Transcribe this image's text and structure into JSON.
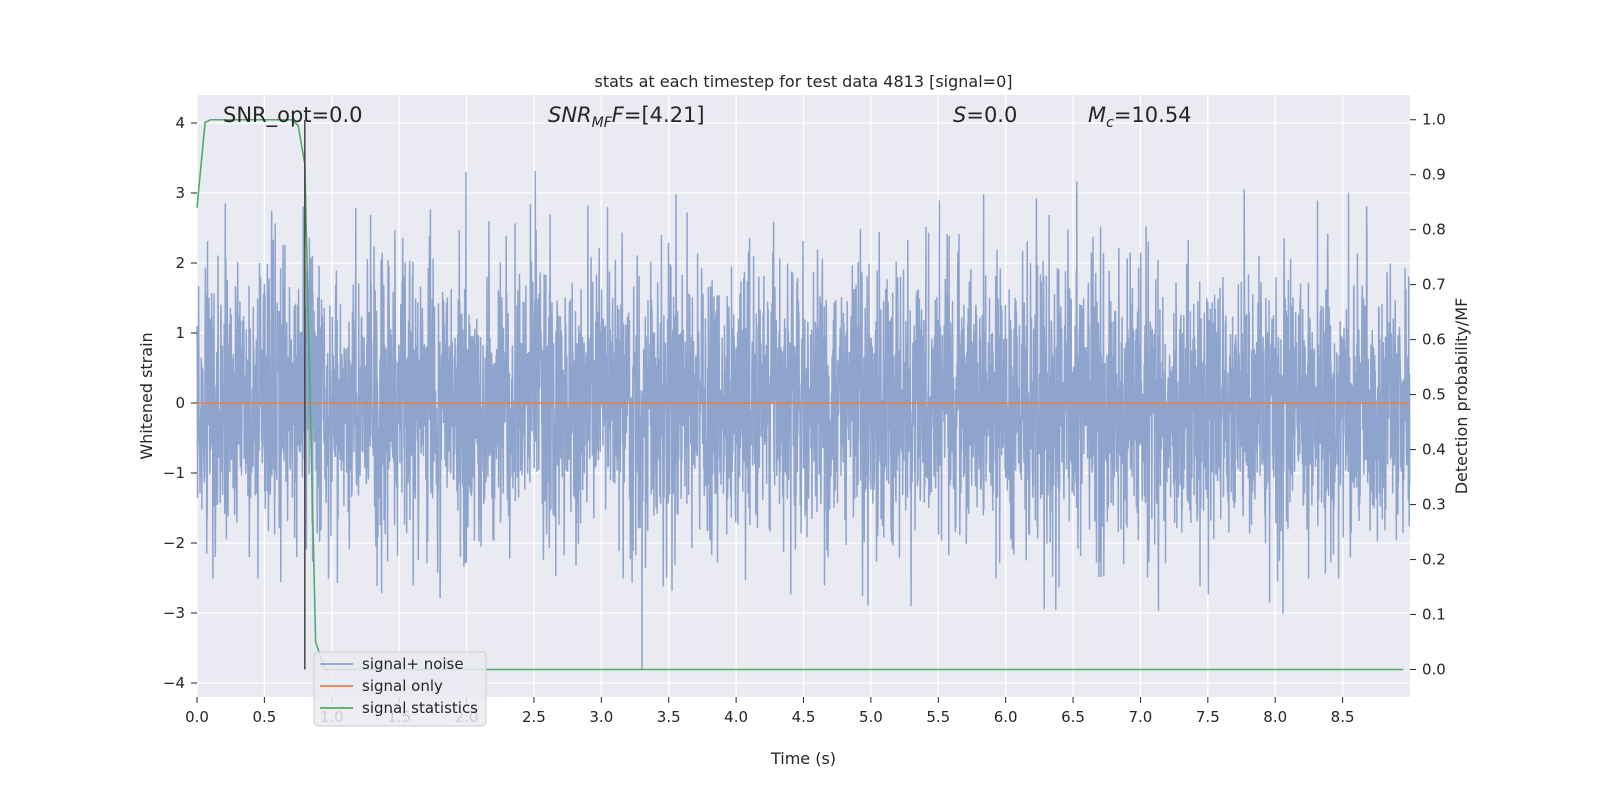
{
  "chart_data": {
    "type": "line",
    "title": "stats at each timestep for test data 4813 [signal=0]",
    "xlabel": "Time (s)",
    "ylabel_left": "Whitened strain",
    "ylabel_right": "Detection probability/MF",
    "xlim": [
      0.0,
      9.0
    ],
    "ylim_left": [
      -4.2,
      4.4
    ],
    "ylim_right": [
      -0.05,
      1.045
    ],
    "xticks": [
      "0.0",
      "0.5",
      "1.0",
      "1.5",
      "2.0",
      "2.5",
      "3.0",
      "3.5",
      "4.0",
      "4.5",
      "5.0",
      "5.5",
      "6.0",
      "6.5",
      "7.0",
      "7.5",
      "8.0",
      "8.5"
    ],
    "yticks_left": [
      "−4",
      "−3",
      "−2",
      "−1",
      "0",
      "1",
      "2",
      "3",
      "4"
    ],
    "yticks_right": [
      "0.0",
      "0.1",
      "0.2",
      "0.3",
      "0.4",
      "0.5",
      "0.6",
      "0.7",
      "0.8",
      "0.9",
      "1.0"
    ],
    "grid": true,
    "legend_position": "lower-left",
    "annotations": {
      "snr_opt": "SNR_opt=0.0",
      "snr_mf_prefix": "SNR",
      "snr_mf_sub": "MF",
      "snr_mf_suffix": "=[4.21]",
      "s_label": "S",
      "s_value": "=0.0",
      "mc_label": "M",
      "mc_sub": "c",
      "mc_value": "=10.54"
    },
    "vertical_marker_x": 0.8,
    "series": [
      {
        "name": "signal+ noise",
        "axis": "left",
        "color": "#8fa4cc",
        "description_stats": {
          "sample_rate": 500,
          "duration": 9.0,
          "std": 1.0,
          "min": -3.8,
          "max": 4.05
        }
      },
      {
        "name": "signal only",
        "axis": "left",
        "color": "#dd8452",
        "x": [
          0.0,
          9.0
        ],
        "values": [
          0.0,
          0.0
        ]
      },
      {
        "name": "signal statistics",
        "axis": "right",
        "color": "#55a868",
        "x": [
          0.0,
          0.06,
          0.1,
          0.15,
          0.3,
          0.5,
          0.7,
          0.75,
          0.8,
          0.88,
          0.95,
          1.0,
          2.0,
          4.0,
          6.0,
          8.0,
          8.95
        ],
        "values": [
          0.84,
          0.995,
          1.0,
          1.0,
          1.0,
          1.0,
          1.0,
          0.99,
          0.92,
          0.05,
          0.0,
          0.0,
          0.0,
          0.0,
          0.0,
          0.0,
          0.0
        ]
      }
    ],
    "colors": {
      "plot_background": "#eaeaf2",
      "grid": "#ffffff",
      "marker_line": "#444444"
    }
  }
}
